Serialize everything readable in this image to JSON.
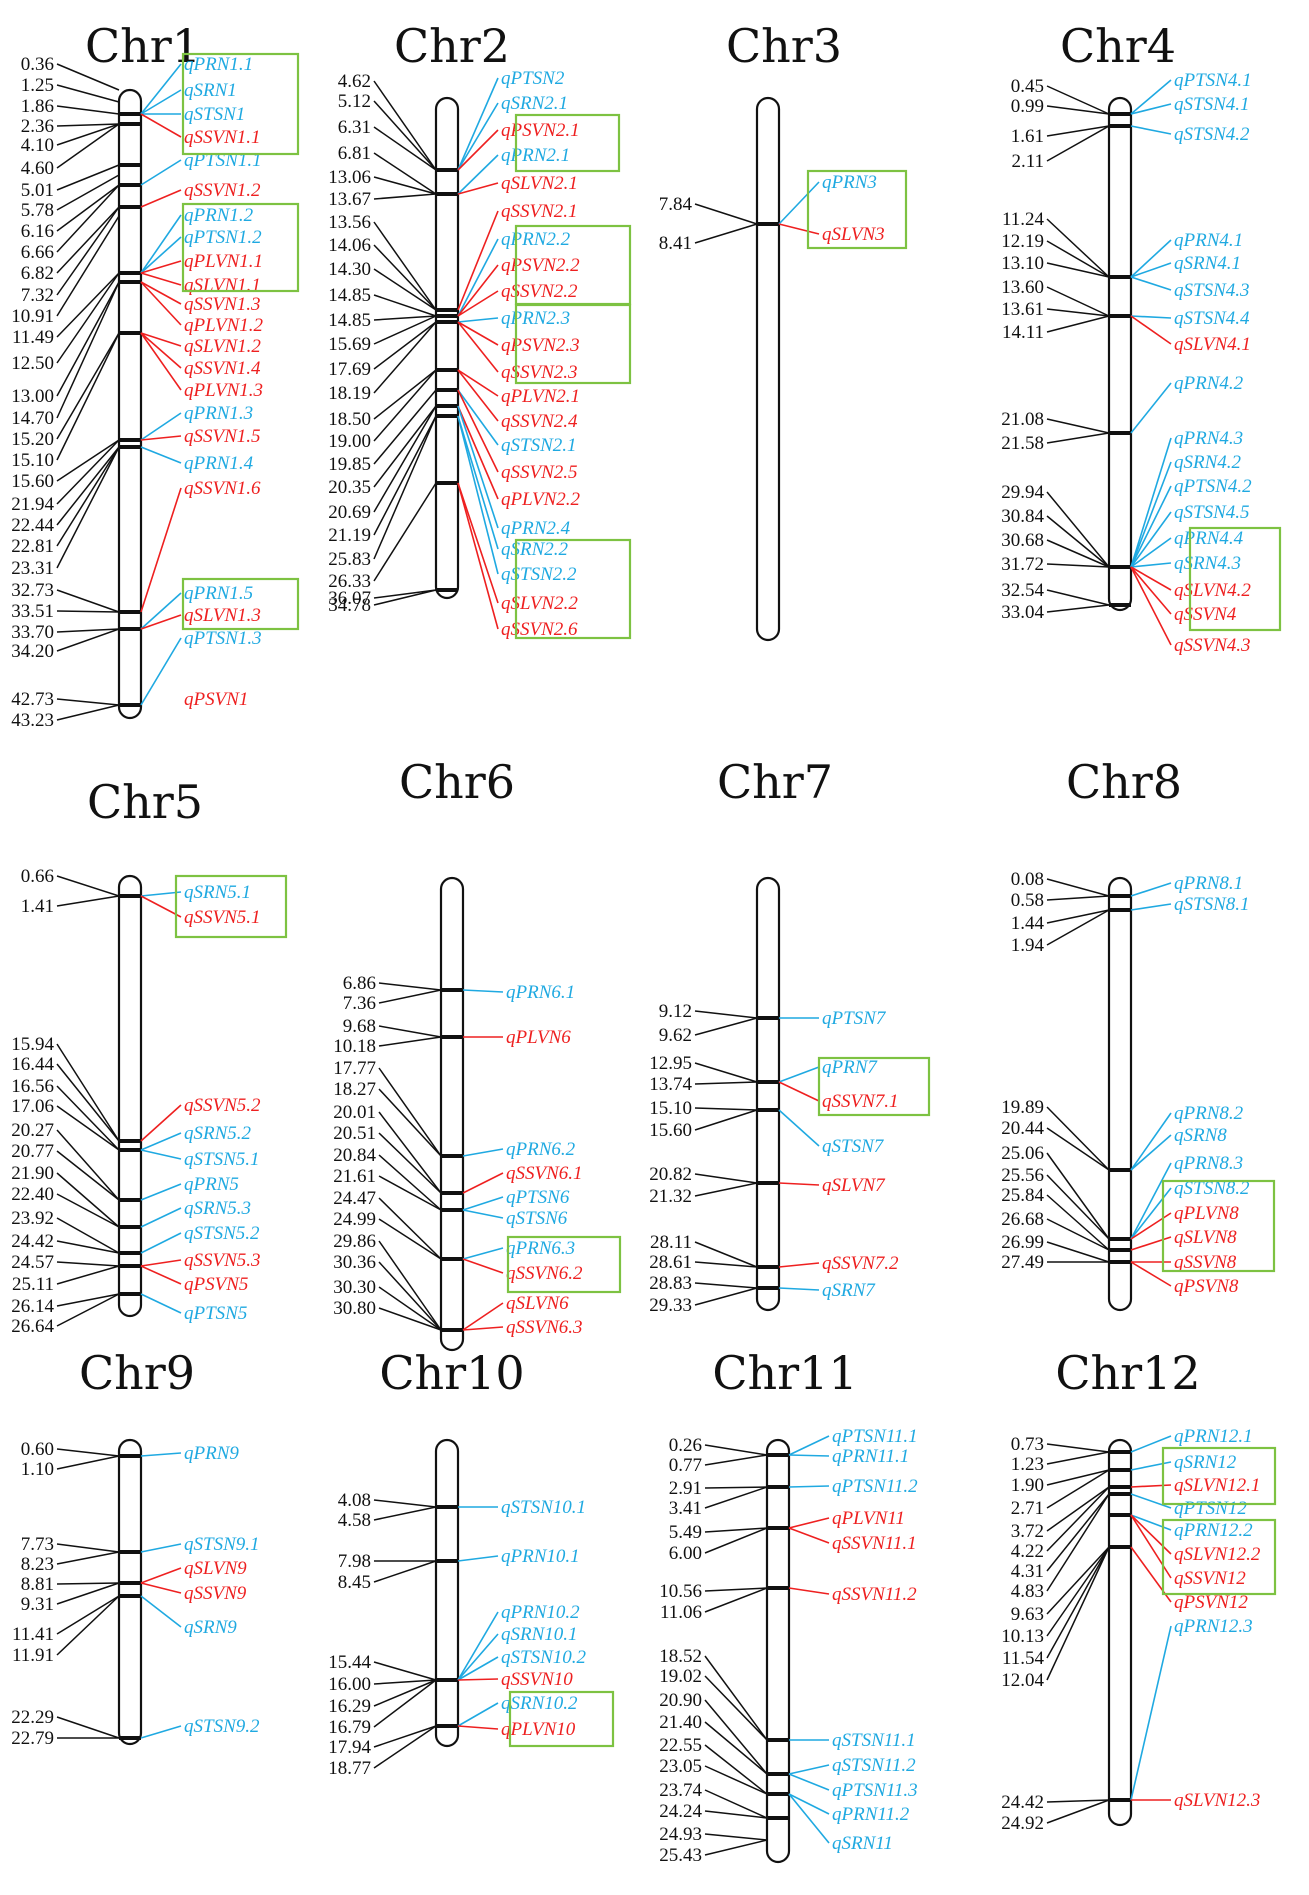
{
  "colors": {
    "blue": "#1fa9e1",
    "red": "#ee2020",
    "box": "#7dc242",
    "ink": "#111111"
  },
  "chromosomes": [
    {
      "name": "Chr1",
      "positions": [
        "0.36",
        "1.25",
        "1.86",
        "2.36",
        "4.10",
        "4.60",
        "5.01",
        "5.78",
        "6.16",
        "6.66",
        "6.82",
        "7.32",
        "10.91",
        "11.49",
        "12.50",
        "13.00",
        "14.70",
        "15.20",
        "15.10",
        "15.60",
        "21.94",
        "22.44",
        "22.81",
        "23.31",
        "32.73",
        "33.51",
        "33.70",
        "34.20",
        "42.73",
        "43.23"
      ],
      "qtls": [
        {
          "name": "qPRN1.1",
          "color": "blue"
        },
        {
          "name": "qSRN1",
          "color": "blue"
        },
        {
          "name": "qSTSN1",
          "color": "blue"
        },
        {
          "name": "qSSVN1.1",
          "color": "red"
        },
        {
          "name": "qPTSN1.1",
          "color": "blue"
        },
        {
          "name": "qSSVN1.2",
          "color": "red"
        },
        {
          "name": "qPRN1.2",
          "color": "blue"
        },
        {
          "name": "qPTSN1.2",
          "color": "blue"
        },
        {
          "name": "qPLVN1.1",
          "color": "red"
        },
        {
          "name": "qSLVN1.1",
          "color": "red"
        },
        {
          "name": "qSSVN1.3",
          "color": "red"
        },
        {
          "name": "qPLVN1.2",
          "color": "red"
        },
        {
          "name": "qSLVN1.2",
          "color": "red"
        },
        {
          "name": "qSSVN1.4",
          "color": "red"
        },
        {
          "name": "qPLVN1.3",
          "color": "red"
        },
        {
          "name": "qPRN1.3",
          "color": "blue"
        },
        {
          "name": "qSSVN1.5",
          "color": "red"
        },
        {
          "name": "qPRN1.4",
          "color": "blue"
        },
        {
          "name": "qSSVN1.6",
          "color": "red"
        },
        {
          "name": "qPRN1.5",
          "color": "blue"
        },
        {
          "name": "qSLVN1.3",
          "color": "red"
        },
        {
          "name": "qPTSN1.3",
          "color": "blue"
        },
        {
          "name": "qPSVN1",
          "color": "red"
        }
      ]
    },
    {
      "name": "Chr2",
      "positions": [
        "4.62",
        "5.12",
        "6.31",
        "6.81",
        "13.06",
        "13.67",
        "13.56",
        "14.06",
        "14.30",
        "14.85",
        "14.85",
        "15.69",
        "17.69",
        "18.19",
        "18.50",
        "19.00",
        "19.85",
        "20.35",
        "20.69",
        "21.19",
        "25.83",
        "26.33",
        "34.78",
        "36.07"
      ],
      "qtls": [
        {
          "name": "qPTSN2",
          "color": "blue"
        },
        {
          "name": "qSRN2.1",
          "color": "blue"
        },
        {
          "name": "qPSVN2.1",
          "color": "red"
        },
        {
          "name": "qPRN2.1",
          "color": "blue"
        },
        {
          "name": "qSLVN2.1",
          "color": "red"
        },
        {
          "name": "qSSVN2.1",
          "color": "red"
        },
        {
          "name": "qPRN2.2",
          "color": "blue"
        },
        {
          "name": "qPSVN2.2",
          "color": "red"
        },
        {
          "name": "qSSVN2.2",
          "color": "red"
        },
        {
          "name": "qPRN2.3",
          "color": "blue"
        },
        {
          "name": "qPSVN2.3",
          "color": "red"
        },
        {
          "name": "qSSVN2.3",
          "color": "red"
        },
        {
          "name": "qPLVN2.1",
          "color": "red"
        },
        {
          "name": "qSSVN2.4",
          "color": "red"
        },
        {
          "name": "qSTSN2.1",
          "color": "blue"
        },
        {
          "name": "qSSVN2.5",
          "color": "red"
        },
        {
          "name": "qPLVN2.2",
          "color": "red"
        },
        {
          "name": "qPRN2.4",
          "color": "blue"
        },
        {
          "name": "qSRN2.2",
          "color": "blue"
        },
        {
          "name": "qSTSN2.2",
          "color": "blue"
        },
        {
          "name": "qSLVN2.2",
          "color": "red"
        },
        {
          "name": "qSSVN2.6",
          "color": "red"
        }
      ]
    },
    {
      "name": "Chr3",
      "positions": [
        "7.84",
        "8.41"
      ],
      "qtls": [
        {
          "name": "qPRN3",
          "color": "blue"
        },
        {
          "name": "qSLVN3",
          "color": "red"
        }
      ]
    },
    {
      "name": "Chr4",
      "positions": [
        "0.45",
        "0.99",
        "1.61",
        "2.11",
        "11.24",
        "12.19",
        "13.10",
        "13.60",
        "13.61",
        "14.11",
        "21.08",
        "21.58",
        "29.94",
        "30.84",
        "30.68",
        "31.72",
        "32.54",
        "33.04"
      ],
      "qtls": [
        {
          "name": "qPTSN4.1",
          "color": "blue"
        },
        {
          "name": "qSTSN4.1",
          "color": "blue"
        },
        {
          "name": "qSTSN4.2",
          "color": "blue"
        },
        {
          "name": "qPRN4.1",
          "color": "blue"
        },
        {
          "name": "qSRN4.1",
          "color": "blue"
        },
        {
          "name": "qSTSN4.3",
          "color": "blue"
        },
        {
          "name": "qSTSN4.4",
          "color": "blue"
        },
        {
          "name": "qSLVN4.1",
          "color": "red"
        },
        {
          "name": "qPRN4.2",
          "color": "blue"
        },
        {
          "name": "qPRN4.3",
          "color": "blue"
        },
        {
          "name": "qSRN4.2",
          "color": "blue"
        },
        {
          "name": "qPTSN4.2",
          "color": "blue"
        },
        {
          "name": "qSTSN4.5",
          "color": "blue"
        },
        {
          "name": "qPRN4.4",
          "color": "blue"
        },
        {
          "name": "qSRN4.3",
          "color": "blue"
        },
        {
          "name": "qSLVN4.2",
          "color": "red"
        },
        {
          "name": "qSSVN4",
          "color": "red"
        },
        {
          "name": "qSSVN4.3",
          "color": "red"
        }
      ]
    },
    {
      "name": "Chr5",
      "positions": [
        "0.66",
        "1.41",
        "15.94",
        "16.44",
        "16.56",
        "17.06",
        "20.27",
        "20.77",
        "21.90",
        "22.40",
        "23.92",
        "24.42",
        "24.57",
        "25.11",
        "26.14",
        "26.64"
      ],
      "qtls": [
        {
          "name": "qSRN5.1",
          "color": "blue"
        },
        {
          "name": "qSSVN5.1",
          "color": "red"
        },
        {
          "name": "qSSVN5.2",
          "color": "red"
        },
        {
          "name": "qSRN5.2",
          "color": "blue"
        },
        {
          "name": "qSTSN5.1",
          "color": "blue"
        },
        {
          "name": "qPRN5",
          "color": "blue"
        },
        {
          "name": "qSRN5.3",
          "color": "blue"
        },
        {
          "name": "qSTSN5.2",
          "color": "blue"
        },
        {
          "name": "qSSVN5.3",
          "color": "red"
        },
        {
          "name": "qPSVN5",
          "color": "red"
        },
        {
          "name": "qPTSN5",
          "color": "blue"
        }
      ]
    },
    {
      "name": "Chr6",
      "positions": [
        "6.86",
        "7.36",
        "9.68",
        "10.18",
        "17.77",
        "18.27",
        "20.01",
        "20.51",
        "20.84",
        "21.61",
        "24.47",
        "24.99",
        "29.86",
        "30.36",
        "30.30",
        "30.80"
      ],
      "qtls": [
        {
          "name": "qPRN6.1",
          "color": "blue"
        },
        {
          "name": "qPLVN6",
          "color": "red"
        },
        {
          "name": "qPRN6.2",
          "color": "blue"
        },
        {
          "name": "qSSVN6.1",
          "color": "red"
        },
        {
          "name": "qPTSN6",
          "color": "blue"
        },
        {
          "name": "qSTSN6",
          "color": "blue"
        },
        {
          "name": "qPRN6.3",
          "color": "blue"
        },
        {
          "name": "qSSVN6.2",
          "color": "red"
        },
        {
          "name": "qSLVN6",
          "color": "red"
        },
        {
          "name": "qSSVN6.3",
          "color": "red"
        }
      ]
    },
    {
      "name": "Chr7",
      "positions": [
        "9.12",
        "9.62",
        "12.95",
        "13.74",
        "15.10",
        "15.60",
        "20.82",
        "21.32",
        "28.11",
        "28.61",
        "28.83",
        "29.33"
      ],
      "qtls": [
        {
          "name": "qPTSN7",
          "color": "blue"
        },
        {
          "name": "qPRN7",
          "color": "blue"
        },
        {
          "name": "qSSVN7.1",
          "color": "red"
        },
        {
          "name": "qSTSN7",
          "color": "blue"
        },
        {
          "name": "qSLVN7",
          "color": "red"
        },
        {
          "name": "qSSVN7.2",
          "color": "red"
        },
        {
          "name": "qSRN7",
          "color": "blue"
        }
      ]
    },
    {
      "name": "Chr8",
      "positions": [
        "0.08",
        "0.58",
        "1.44",
        "1.94",
        "19.89",
        "20.44",
        "25.06",
        "25.56",
        "25.84",
        "26.68",
        "26.99",
        "27.49"
      ],
      "qtls": [
        {
          "name": "qPRN8.1",
          "color": "blue"
        },
        {
          "name": "qSTSN8.1",
          "color": "blue"
        },
        {
          "name": "qPRN8.2",
          "color": "blue"
        },
        {
          "name": "qSRN8",
          "color": "blue"
        },
        {
          "name": "qPRN8.3",
          "color": "blue"
        },
        {
          "name": "qSTSN8.2",
          "color": "blue"
        },
        {
          "name": "qPLVN8",
          "color": "red"
        },
        {
          "name": "qSLVN8",
          "color": "red"
        },
        {
          "name": "qSSVN8",
          "color": "red"
        },
        {
          "name": "qPSVN8",
          "color": "red"
        }
      ]
    },
    {
      "name": "Chr9",
      "positions": [
        "0.60",
        "1.10",
        "7.73",
        "8.23",
        "8.81",
        "9.31",
        "11.41",
        "11.91",
        "22.29",
        "22.79"
      ],
      "qtls": [
        {
          "name": "qPRN9",
          "color": "blue"
        },
        {
          "name": "qSTSN9.1",
          "color": "blue"
        },
        {
          "name": "qSLVN9",
          "color": "red"
        },
        {
          "name": "qSSVN9",
          "color": "red"
        },
        {
          "name": "qSRN9",
          "color": "blue"
        },
        {
          "name": "qSTSN9.2",
          "color": "blue"
        }
      ]
    },
    {
      "name": "Chr10",
      "positions": [
        "4.08",
        "4.58",
        "7.98",
        "8.45",
        "15.44",
        "16.00",
        "16.29",
        "16.79",
        "17.94",
        "18.77"
      ],
      "qtls": [
        {
          "name": "qSTSN10.1",
          "color": "blue"
        },
        {
          "name": "qPRN10.1",
          "color": "blue"
        },
        {
          "name": "qPRN10.2",
          "color": "blue"
        },
        {
          "name": "qSRN10.1",
          "color": "blue"
        },
        {
          "name": "qSTSN10.2",
          "color": "blue"
        },
        {
          "name": "qSSVN10",
          "color": "red"
        },
        {
          "name": "qSRN10.2",
          "color": "blue"
        },
        {
          "name": "qPLVN10",
          "color": "red"
        }
      ]
    },
    {
      "name": "Chr11",
      "positions": [
        "0.26",
        "0.77",
        "2.91",
        "3.41",
        "5.49",
        "6.00",
        "10.56",
        "11.06",
        "18.52",
        "19.02",
        "20.90",
        "21.40",
        "22.55",
        "23.05",
        "23.74",
        "24.24",
        "24.93",
        "25.43"
      ],
      "qtls": [
        {
          "name": "qPTSN11.1",
          "color": "blue"
        },
        {
          "name": "qPRN11.1",
          "color": "blue"
        },
        {
          "name": "qPTSN11.2",
          "color": "blue"
        },
        {
          "name": "qPLVN11",
          "color": "red"
        },
        {
          "name": "qSSVN11.1",
          "color": "red"
        },
        {
          "name": "qSSVN11.2",
          "color": "red"
        },
        {
          "name": "qSTSN11.1",
          "color": "blue"
        },
        {
          "name": "qSTSN11.2",
          "color": "blue"
        },
        {
          "name": "qPTSN11.3",
          "color": "blue"
        },
        {
          "name": "qPRN11.2",
          "color": "blue"
        },
        {
          "name": "qSRN11",
          "color": "blue"
        }
      ]
    },
    {
      "name": "Chr12",
      "positions": [
        "0.73",
        "1.23",
        "1.90",
        "2.71",
        "3.72",
        "4.22",
        "4.31",
        "4.83",
        "9.63",
        "10.13",
        "11.54",
        "12.04",
        "24.42",
        "24.92"
      ],
      "qtls": [
        {
          "name": "qPRN12.1",
          "color": "blue"
        },
        {
          "name": "qSRN12",
          "color": "blue"
        },
        {
          "name": "qSLVN12.1",
          "color": "red"
        },
        {
          "name": "qPTSN12",
          "color": "blue"
        },
        {
          "name": "qPRN12.2",
          "color": "blue"
        },
        {
          "name": "qSLVN12.2",
          "color": "red"
        },
        {
          "name": "qSSVN12",
          "color": "red"
        },
        {
          "name": "qPSVN12",
          "color": "red"
        },
        {
          "name": "qPRN12.3",
          "color": "blue"
        },
        {
          "name": "qSLVN12.3",
          "color": "red"
        }
      ]
    }
  ]
}
